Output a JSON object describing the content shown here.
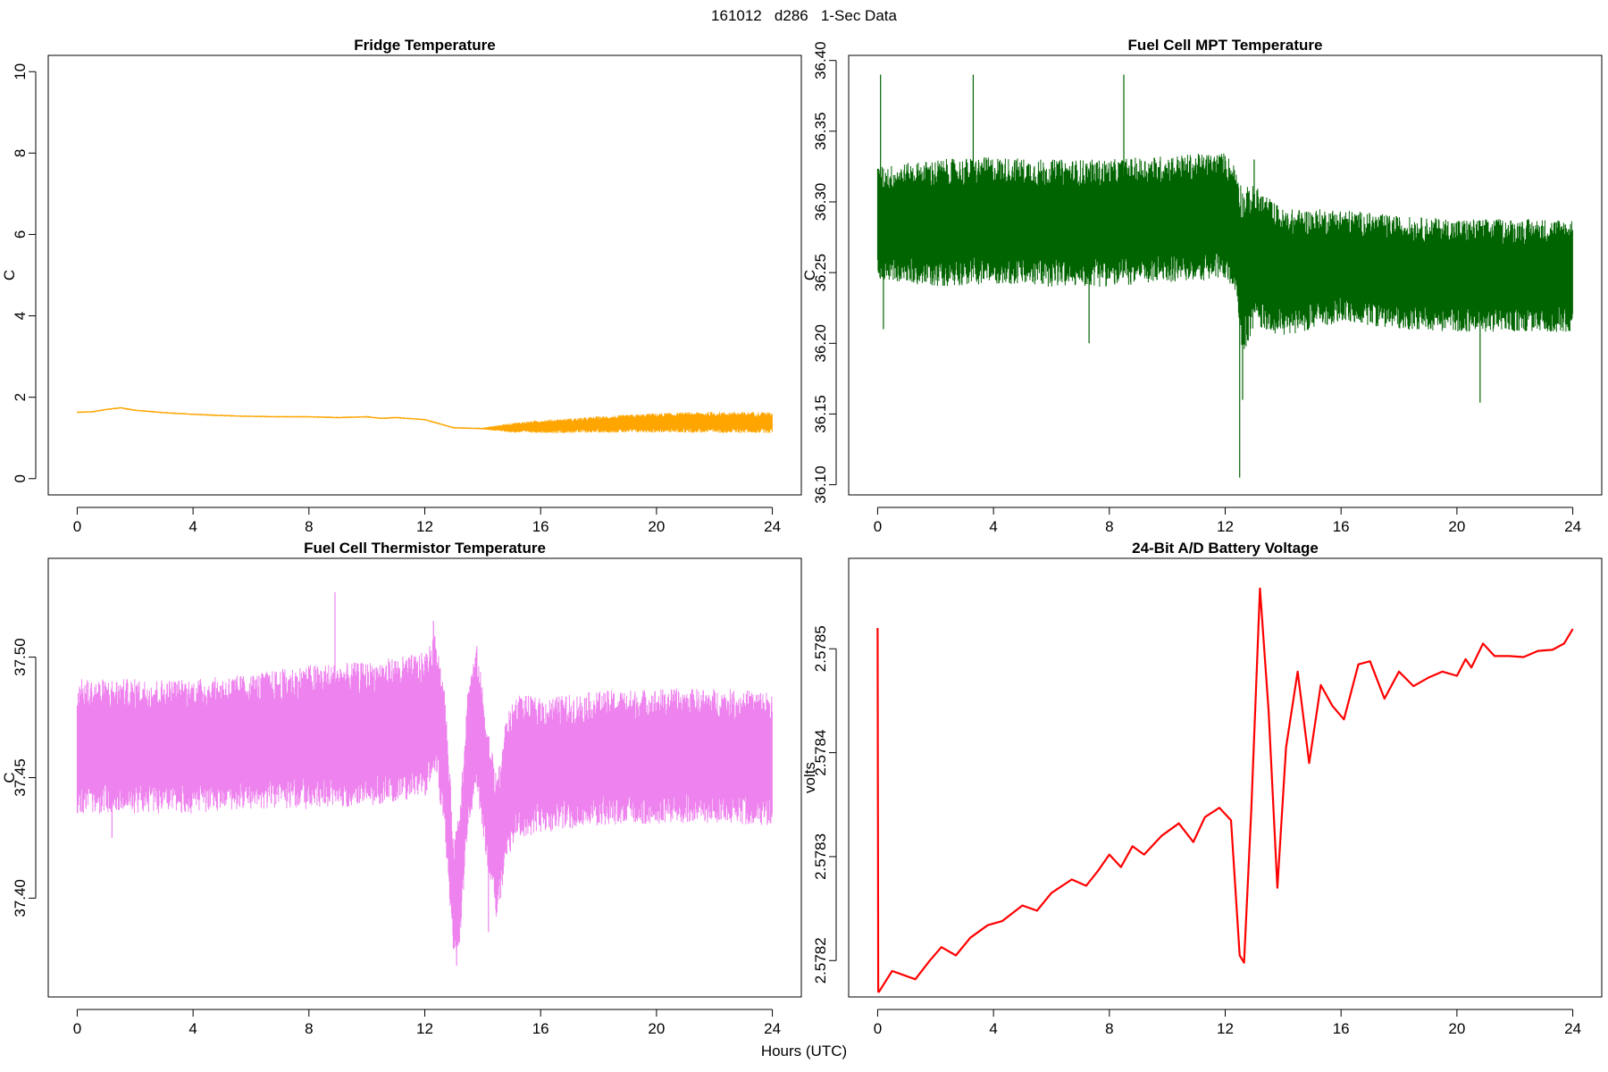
{
  "page_title": "161012   d286   1-Sec Data",
  "x_axis_label": "Hours (UTC)",
  "chart_data": [
    {
      "id": "fridge",
      "type": "line",
      "title": "Fridge Temperature",
      "ylabel": "C",
      "color": "#FFA500",
      "xlim": [
        -1,
        25
      ],
      "ylim": [
        -0.4,
        10.4
      ],
      "xticks": [
        0,
        4,
        8,
        12,
        16,
        20,
        24
      ],
      "yticks": [
        0,
        2,
        4,
        6,
        8,
        10
      ],
      "ytick_labels": [
        "0",
        "2",
        "4",
        "6",
        "8",
        "10"
      ],
      "x": [
        0,
        0.5,
        1,
        1.5,
        2,
        3,
        4,
        5,
        6,
        7,
        8,
        9,
        10,
        10.5,
        11,
        12,
        13,
        14,
        15,
        16,
        17,
        18,
        19,
        20,
        21,
        22,
        23,
        24
      ],
      "series_center": [
        1.63,
        1.64,
        1.7,
        1.74,
        1.68,
        1.62,
        1.58,
        1.55,
        1.53,
        1.52,
        1.52,
        1.5,
        1.52,
        1.48,
        1.5,
        1.45,
        1.25,
        1.23,
        1.25,
        1.28,
        1.3,
        1.33,
        1.35,
        1.37,
        1.38,
        1.38,
        1.38,
        1.38
      ],
      "series_spread": [
        0.02,
        0.02,
        0.02,
        0.02,
        0.02,
        0.02,
        0.02,
        0.02,
        0.02,
        0.02,
        0.02,
        0.02,
        0.02,
        0.02,
        0.02,
        0.02,
        0.02,
        0.02,
        0.12,
        0.16,
        0.18,
        0.2,
        0.22,
        0.24,
        0.25,
        0.26,
        0.26,
        0.26
      ]
    },
    {
      "id": "mpt",
      "type": "line",
      "title": "Fuel Cell MPT Temperature",
      "ylabel": "C",
      "color": "#006400",
      "xlim": [
        -1,
        25
      ],
      "ylim": [
        36.0928,
        36.4036
      ],
      "xticks": [
        0,
        4,
        8,
        12,
        16,
        20,
        24
      ],
      "yticks": [
        36.1,
        36.15,
        36.2,
        36.25,
        36.3,
        36.35,
        36.4
      ],
      "ytick_labels": [
        "36.10",
        "36.15",
        "36.20",
        "36.25",
        "36.30",
        "36.35",
        "36.40"
      ],
      "x": [
        0,
        2,
        4,
        6,
        8,
        10,
        12,
        12.4,
        12.6,
        13,
        14,
        16,
        18,
        20,
        22,
        24
      ],
      "series_center": [
        36.285,
        36.285,
        36.287,
        36.285,
        36.285,
        36.288,
        36.29,
        36.28,
        36.25,
        36.262,
        36.25,
        36.255,
        36.25,
        36.248,
        36.248,
        36.248
      ],
      "series_spread": [
        0.04,
        0.045,
        0.045,
        0.045,
        0.045,
        0.045,
        0.045,
        0.045,
        0.06,
        0.05,
        0.045,
        0.04,
        0.04,
        0.04,
        0.04,
        0.04
      ],
      "spikes": [
        {
          "x": 0.1,
          "y": 36.39
        },
        {
          "x": 0.2,
          "y": 36.21
        },
        {
          "x": 3.3,
          "y": 36.39
        },
        {
          "x": 8.5,
          "y": 36.39
        },
        {
          "x": 7.3,
          "y": 36.2
        },
        {
          "x": 12.5,
          "y": 36.105
        },
        {
          "x": 12.6,
          "y": 36.16
        },
        {
          "x": 13.0,
          "y": 36.33
        },
        {
          "x": 20.8,
          "y": 36.158
        }
      ]
    },
    {
      "id": "thermistor",
      "type": "line",
      "title": "Fuel Cell Thermistor Temperature",
      "ylabel": "C",
      "color": "#EE82EE",
      "xlim": [
        -1,
        25
      ],
      "ylim": [
        37.359,
        37.541
      ],
      "xticks": [
        0,
        4,
        8,
        12,
        16,
        20,
        24
      ],
      "yticks": [
        37.4,
        37.45,
        37.5
      ],
      "ytick_labels": [
        "37.40",
        "37.45",
        "37.50"
      ],
      "x": [
        0,
        2,
        4,
        6,
        8,
        10,
        11,
        12,
        12.4,
        12.7,
        13.0,
        13.2,
        13.5,
        13.8,
        14.2,
        14.5,
        14.8,
        15.2,
        16,
        18,
        20,
        22,
        24
      ],
      "series_center": [
        37.463,
        37.463,
        37.463,
        37.465,
        37.467,
        37.468,
        37.47,
        37.472,
        37.48,
        37.455,
        37.4,
        37.41,
        37.46,
        37.475,
        37.44,
        37.42,
        37.445,
        37.455,
        37.455,
        37.458,
        37.459,
        37.459,
        37.458
      ],
      "series_spread": [
        0.028,
        0.028,
        0.028,
        0.028,
        0.03,
        0.03,
        0.03,
        0.03,
        0.03,
        0.03,
        0.025,
        0.03,
        0.03,
        0.03,
        0.03,
        0.03,
        0.03,
        0.03,
        0.028,
        0.028,
        0.028,
        0.028,
        0.028
      ],
      "spikes": [
        {
          "x": 8.9,
          "y": 37.527
        },
        {
          "x": 12.3,
          "y": 37.515
        },
        {
          "x": 13.1,
          "y": 37.372
        },
        {
          "x": 14.2,
          "y": 37.386
        },
        {
          "x": 1.2,
          "y": 37.425
        }
      ]
    },
    {
      "id": "battery",
      "type": "line",
      "title": "24-Bit A/D Battery Voltage",
      "ylabel": "volts",
      "color": "#FF0000",
      "xlim": [
        -1,
        25
      ],
      "ylim": [
        2.578165,
        2.578587
      ],
      "xticks": [
        0,
        4,
        8,
        12,
        16,
        20,
        24
      ],
      "yticks": [
        2.5782,
        2.5783,
        2.5784,
        2.5785
      ],
      "ytick_labels": [
        "2.5782",
        "2.5783",
        "2.5784",
        "2.5785"
      ],
      "x": [
        0.0,
        0.02,
        0.05,
        0.5,
        1.0,
        1.3,
        1.8,
        2.2,
        2.7,
        3.2,
        3.8,
        4.3,
        5.0,
        5.5,
        6.0,
        6.7,
        7.2,
        7.6,
        8.0,
        8.4,
        8.8,
        9.2,
        9.8,
        10.4,
        10.9,
        11.3,
        11.8,
        12.2,
        12.5,
        12.65,
        12.9,
        13.2,
        13.5,
        13.8,
        14.1,
        14.5,
        14.9,
        15.3,
        15.7,
        16.1,
        16.6,
        17.0,
        17.5,
        18.0,
        18.5,
        19.0,
        19.5,
        20.0,
        20.3,
        20.5,
        20.9,
        21.3,
        21.8,
        22.3,
        22.8,
        23.3,
        23.7,
        24.0
      ],
      "y": [
        2.57852,
        2.57817,
        2.57817,
        2.57819,
        2.578185,
        2.578182,
        2.5782,
        2.578213,
        2.578205,
        2.578222,
        2.578234,
        2.578238,
        2.578253,
        2.578248,
        2.578265,
        2.578278,
        2.578272,
        2.578286,
        2.578302,
        2.57829,
        2.57831,
        2.578302,
        2.57832,
        2.578332,
        2.578314,
        2.578338,
        2.578347,
        2.578335,
        2.578205,
        2.578198,
        2.578345,
        2.578558,
        2.57844,
        2.57827,
        2.578405,
        2.578478,
        2.57839,
        2.578465,
        2.578445,
        2.578432,
        2.578485,
        2.578488,
        2.578452,
        2.578478,
        2.578464,
        2.578472,
        2.578478,
        2.578474,
        2.57849,
        2.578482,
        2.578505,
        2.578493,
        2.578493,
        2.578492,
        2.578498,
        2.578499,
        2.578505,
        2.578519
      ]
    }
  ]
}
